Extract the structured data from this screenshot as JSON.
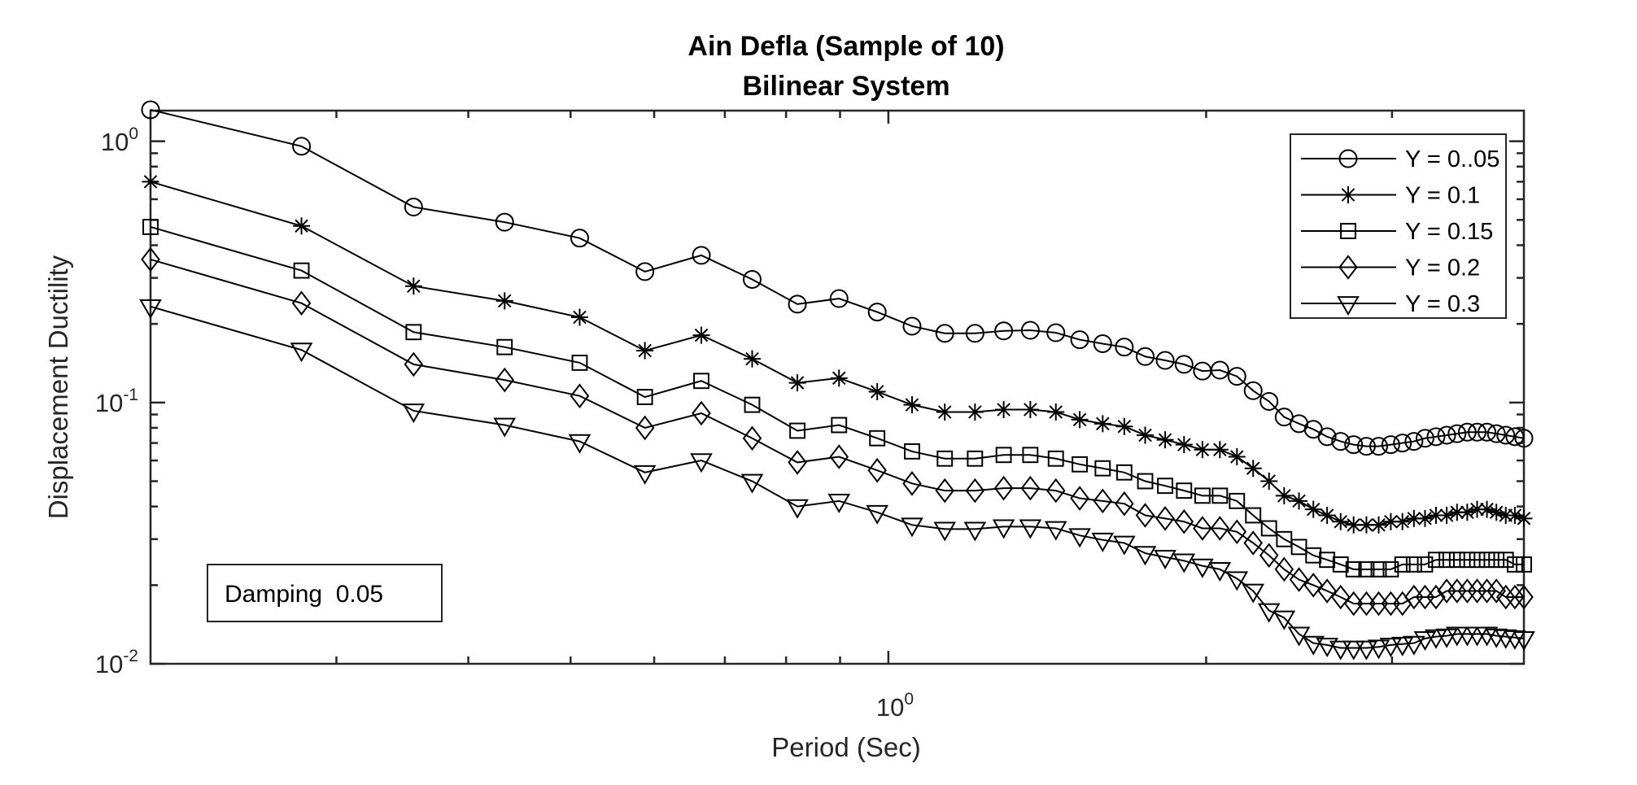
{
  "chart_data": {
    "type": "line",
    "title": "Ain Defla (Sample of 10)",
    "subtitle": "Bilinear System",
    "xlabel": "Period (Sec)",
    "ylabel": "Displacement Ductility",
    "xscale": "log",
    "yscale": "log",
    "xlim": [
      0.2,
      4.0
    ],
    "ylim": [
      0.01,
      1.31
    ],
    "x_ticks": [
      {
        "base": "10",
        "exp": "0",
        "value": 1
      }
    ],
    "y_ticks": [
      {
        "base": "10",
        "exp": "0",
        "value": 1
      },
      {
        "base": "10",
        "exp": "-1",
        "value": 0.1
      },
      {
        "base": "10",
        "exp": "-2",
        "value": 0.01
      }
    ],
    "grid": false,
    "legend_position": "top-right",
    "annotation": "Damping  0.05",
    "x": [
      0.2,
      0.278,
      0.355,
      0.433,
      0.51,
      0.588,
      0.665,
      0.743,
      0.82,
      0.898,
      0.976,
      1.053,
      1.131,
      1.208,
      1.286,
      1.363,
      1.441,
      1.518,
      1.596,
      1.673,
      1.751,
      1.829,
      1.906,
      1.984,
      2.061,
      2.139,
      2.216,
      2.294,
      2.371,
      2.449,
      2.527,
      2.604,
      2.682,
      2.759,
      2.837,
      2.914,
      2.992,
      3.069,
      3.147,
      3.224,
      3.302,
      3.38,
      3.457,
      3.535,
      3.612,
      3.69,
      3.767,
      3.845,
      3.922,
      4.0
    ],
    "series": [
      {
        "name": "Y = 0..05",
        "marker": "circle",
        "values": [
          1.32,
          0.957,
          0.56,
          0.49,
          0.426,
          0.317,
          0.366,
          0.296,
          0.238,
          0.25,
          0.222,
          0.196,
          0.184,
          0.184,
          0.188,
          0.189,
          0.185,
          0.174,
          0.168,
          0.163,
          0.15,
          0.145,
          0.14,
          0.132,
          0.133,
          0.126,
          0.111,
          0.101,
          0.088,
          0.083,
          0.079,
          0.074,
          0.071,
          0.069,
          0.068,
          0.068,
          0.069,
          0.07,
          0.071,
          0.073,
          0.074,
          0.075,
          0.076,
          0.077,
          0.077,
          0.077,
          0.076,
          0.075,
          0.074,
          0.073
        ]
      },
      {
        "name": "Y = 0.1",
        "marker": "star",
        "values": [
          0.7,
          0.474,
          0.279,
          0.245,
          0.212,
          0.158,
          0.181,
          0.147,
          0.119,
          0.124,
          0.11,
          0.098,
          0.092,
          0.092,
          0.094,
          0.094,
          0.092,
          0.086,
          0.083,
          0.081,
          0.075,
          0.072,
          0.069,
          0.066,
          0.066,
          0.062,
          0.056,
          0.05,
          0.044,
          0.042,
          0.039,
          0.037,
          0.035,
          0.034,
          0.034,
          0.034,
          0.035,
          0.035,
          0.036,
          0.036,
          0.037,
          0.037,
          0.038,
          0.038,
          0.039,
          0.039,
          0.038,
          0.037,
          0.037,
          0.036
        ]
      },
      {
        "name": "Y = 0.15",
        "marker": "square",
        "values": [
          0.47,
          0.32,
          0.186,
          0.163,
          0.142,
          0.105,
          0.121,
          0.098,
          0.078,
          0.082,
          0.073,
          0.065,
          0.061,
          0.061,
          0.063,
          0.063,
          0.061,
          0.058,
          0.056,
          0.054,
          0.05,
          0.048,
          0.046,
          0.044,
          0.044,
          0.042,
          0.037,
          0.033,
          0.03,
          0.028,
          0.026,
          0.025,
          0.024,
          0.023,
          0.023,
          0.023,
          0.023,
          0.024,
          0.024,
          0.024,
          0.025,
          0.025,
          0.025,
          0.025,
          0.025,
          0.025,
          0.025,
          0.025,
          0.024,
          0.024
        ]
      },
      {
        "name": "Y = 0.2",
        "marker": "diamond",
        "values": [
          0.353,
          0.24,
          0.14,
          0.122,
          0.106,
          0.08,
          0.091,
          0.073,
          0.059,
          0.062,
          0.055,
          0.049,
          0.046,
          0.046,
          0.047,
          0.047,
          0.046,
          0.043,
          0.042,
          0.041,
          0.037,
          0.036,
          0.035,
          0.033,
          0.033,
          0.032,
          0.029,
          0.026,
          0.023,
          0.021,
          0.02,
          0.019,
          0.018,
          0.017,
          0.017,
          0.017,
          0.017,
          0.017,
          0.018,
          0.018,
          0.018,
          0.019,
          0.019,
          0.019,
          0.019,
          0.019,
          0.019,
          0.018,
          0.018,
          0.018
        ]
      },
      {
        "name": "Y = 0.3",
        "marker": "triangle-down",
        "values": [
          0.233,
          0.159,
          0.093,
          0.082,
          0.071,
          0.054,
          0.06,
          0.05,
          0.04,
          0.042,
          0.038,
          0.034,
          0.0328,
          0.0328,
          0.0335,
          0.0335,
          0.033,
          0.031,
          0.0298,
          0.029,
          0.0265,
          0.0256,
          0.0248,
          0.0237,
          0.023,
          0.0212,
          0.019,
          0.016,
          0.015,
          0.013,
          0.012,
          0.0118,
          0.0115,
          0.0115,
          0.0115,
          0.0116,
          0.0118,
          0.0119,
          0.012,
          0.0125,
          0.0127,
          0.0128,
          0.013,
          0.013,
          0.013,
          0.013,
          0.0128,
          0.0127,
          0.0126,
          0.0125
        ]
      }
    ]
  }
}
